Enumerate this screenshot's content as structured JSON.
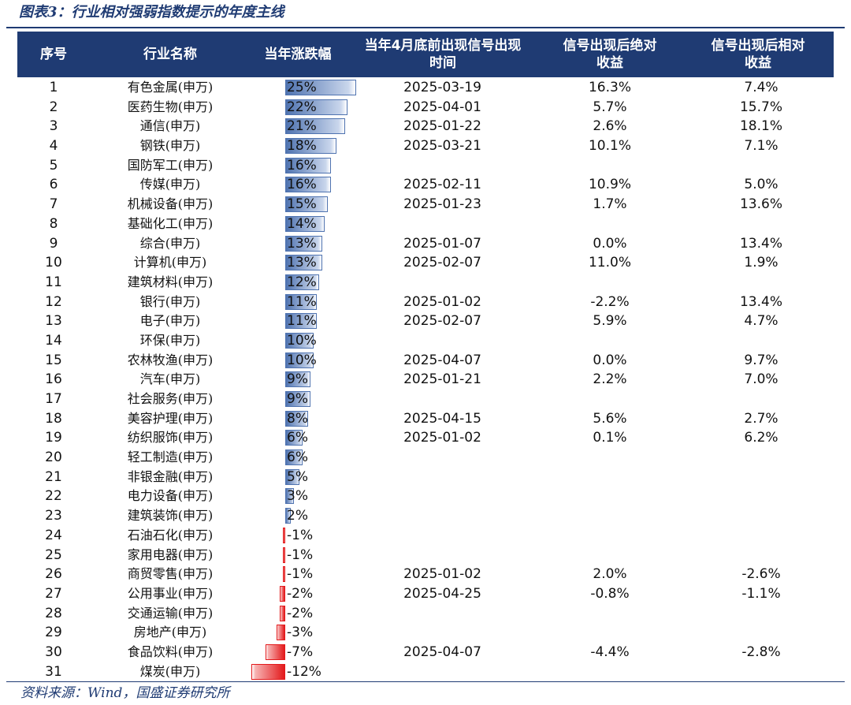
{
  "title": "图表3：行业相对强弱指数提示的年度主线",
  "source": "资料来源：Wind，国盛证券研究所",
  "colors": {
    "header_bg": "#1f3b73",
    "positive_bar": "#4f73b0",
    "negative_bar": "#e31a1c"
  },
  "table": {
    "headers": {
      "no": "序号",
      "name": "行业名称",
      "ytd": "当年涨跌幅",
      "signal_time": "当年4月底前出现信号出现时间",
      "abs_return": "信号出现后绝对收益",
      "rel_return": "信号出现后相对收益"
    },
    "rows": [
      {
        "no": "1",
        "name": "有色金属(申万)",
        "ytd": "25%",
        "ytd_value": 25,
        "date": "2025-03-19",
        "abs": "16.3%",
        "rel": "7.4%"
      },
      {
        "no": "2",
        "name": "医药生物(申万)",
        "ytd": "22%",
        "ytd_value": 22,
        "date": "2025-04-01",
        "abs": "5.7%",
        "rel": "15.7%"
      },
      {
        "no": "3",
        "name": "通信(申万)",
        "ytd": "21%",
        "ytd_value": 21,
        "date": "2025-01-22",
        "abs": "2.6%",
        "rel": "18.1%"
      },
      {
        "no": "4",
        "name": "钢铁(申万)",
        "ytd": "18%",
        "ytd_value": 18,
        "date": "2025-03-21",
        "abs": "10.1%",
        "rel": "7.1%"
      },
      {
        "no": "5",
        "name": "国防军工(申万)",
        "ytd": "16%",
        "ytd_value": 16,
        "date": "",
        "abs": "",
        "rel": ""
      },
      {
        "no": "6",
        "name": "传媒(申万)",
        "ytd": "16%",
        "ytd_value": 16,
        "date": "2025-02-11",
        "abs": "10.9%",
        "rel": "5.0%"
      },
      {
        "no": "7",
        "name": "机械设备(申万)",
        "ytd": "15%",
        "ytd_value": 15,
        "date": "2025-01-23",
        "abs": "1.7%",
        "rel": "13.6%"
      },
      {
        "no": "8",
        "name": "基础化工(申万)",
        "ytd": "14%",
        "ytd_value": 14,
        "date": "",
        "abs": "",
        "rel": ""
      },
      {
        "no": "9",
        "name": "综合(申万)",
        "ytd": "13%",
        "ytd_value": 13,
        "date": "2025-01-07",
        "abs": "0.0%",
        "rel": "13.4%"
      },
      {
        "no": "10",
        "name": "计算机(申万)",
        "ytd": "13%",
        "ytd_value": 13,
        "date": "2025-02-07",
        "abs": "11.0%",
        "rel": "1.9%"
      },
      {
        "no": "11",
        "name": "建筑材料(申万)",
        "ytd": "12%",
        "ytd_value": 12,
        "date": "",
        "abs": "",
        "rel": ""
      },
      {
        "no": "12",
        "name": "银行(申万)",
        "ytd": "11%",
        "ytd_value": 11,
        "date": "2025-01-02",
        "abs": "-2.2%",
        "rel": "13.4%"
      },
      {
        "no": "13",
        "name": "电子(申万)",
        "ytd": "11%",
        "ytd_value": 11,
        "date": "2025-02-07",
        "abs": "5.9%",
        "rel": "4.7%"
      },
      {
        "no": "14",
        "name": "环保(申万)",
        "ytd": "10%",
        "ytd_value": 10,
        "date": "",
        "abs": "",
        "rel": ""
      },
      {
        "no": "15",
        "name": "农林牧渔(申万)",
        "ytd": "10%",
        "ytd_value": 10,
        "date": "2025-04-07",
        "abs": "0.0%",
        "rel": "9.7%"
      },
      {
        "no": "16",
        "name": "汽车(申万)",
        "ytd": "9%",
        "ytd_value": 9,
        "date": "2025-01-21",
        "abs": "2.2%",
        "rel": "7.0%"
      },
      {
        "no": "17",
        "name": "社会服务(申万)",
        "ytd": "9%",
        "ytd_value": 9,
        "date": "",
        "abs": "",
        "rel": ""
      },
      {
        "no": "18",
        "name": "美容护理(申万)",
        "ytd": "8%",
        "ytd_value": 8,
        "date": "2025-04-15",
        "abs": "5.6%",
        "rel": "2.7%"
      },
      {
        "no": "19",
        "name": "纺织服饰(申万)",
        "ytd": "6%",
        "ytd_value": 6,
        "date": "2025-01-02",
        "abs": "0.1%",
        "rel": "6.2%"
      },
      {
        "no": "20",
        "name": "轻工制造(申万)",
        "ytd": "6%",
        "ytd_value": 6,
        "date": "",
        "abs": "",
        "rel": ""
      },
      {
        "no": "21",
        "name": "非银金融(申万)",
        "ytd": "5%",
        "ytd_value": 5,
        "date": "",
        "abs": "",
        "rel": ""
      },
      {
        "no": "22",
        "name": "电力设备(申万)",
        "ytd": "3%",
        "ytd_value": 3,
        "date": "",
        "abs": "",
        "rel": ""
      },
      {
        "no": "23",
        "name": "建筑装饰(申万)",
        "ytd": "2%",
        "ytd_value": 2,
        "date": "",
        "abs": "",
        "rel": ""
      },
      {
        "no": "24",
        "name": "石油石化(申万)",
        "ytd": "-1%",
        "ytd_value": -0.6,
        "date": "",
        "abs": "",
        "rel": ""
      },
      {
        "no": "25",
        "name": "家用电器(申万)",
        "ytd": "-1%",
        "ytd_value": -0.6,
        "date": "",
        "abs": "",
        "rel": ""
      },
      {
        "no": "26",
        "name": "商贸零售(申万)",
        "ytd": "-1%",
        "ytd_value": -0.6,
        "date": "2025-01-02",
        "abs": "2.0%",
        "rel": "-2.6%"
      },
      {
        "no": "27",
        "name": "公用事业(申万)",
        "ytd": "-2%",
        "ytd_value": -2,
        "date": "2025-04-25",
        "abs": "-0.8%",
        "rel": "-1.1%"
      },
      {
        "no": "28",
        "name": "交通运输(申万)",
        "ytd": "-2%",
        "ytd_value": -2,
        "date": "",
        "abs": "",
        "rel": ""
      },
      {
        "no": "29",
        "name": "房地产(申万)",
        "ytd": "-3%",
        "ytd_value": -3,
        "date": "",
        "abs": "",
        "rel": ""
      },
      {
        "no": "30",
        "name": "食品饮料(申万)",
        "ytd": "-7%",
        "ytd_value": -7,
        "date": "2025-04-07",
        "abs": "-4.4%",
        "rel": "-2.8%"
      },
      {
        "no": "31",
        "name": "煤炭(申万)",
        "ytd": "-12%",
        "ytd_value": -12,
        "date": "",
        "abs": "",
        "rel": ""
      }
    ]
  }
}
